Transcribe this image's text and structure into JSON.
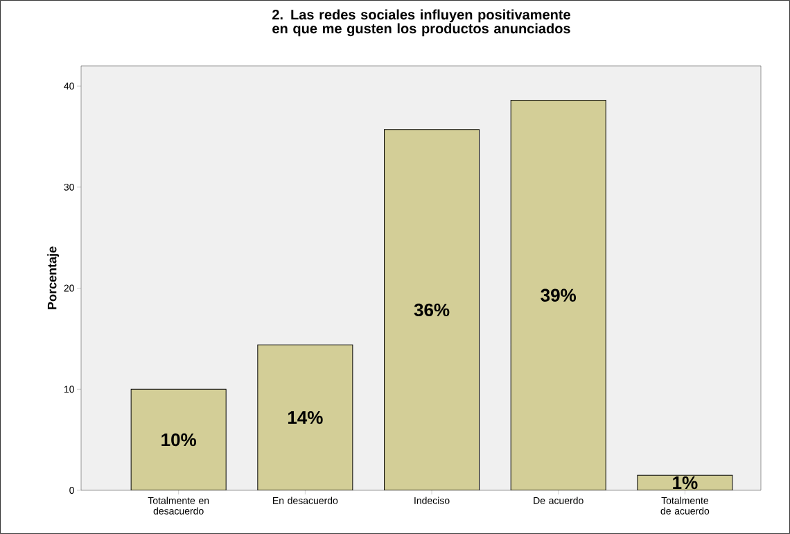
{
  "chart_data": {
    "type": "bar",
    "title": "2. Las redes sociales influyen positivamente en que me gusten los productos anunciados",
    "ylabel": "Porcentaje",
    "categories": [
      "Totalmente en desacuerdo",
      "En desacuerdo",
      "Indeciso",
      "De acuerdo",
      "Totalmente de acuerdo"
    ],
    "values": [
      10,
      14.4,
      35.7,
      38.6,
      1.5
    ],
    "value_labels": [
      "10%",
      "14%",
      "36%",
      "39%",
      "1%"
    ],
    "color": "#d3ce97",
    "ylim": [
      0,
      42
    ],
    "yticks": [
      0,
      10,
      20,
      30,
      40
    ],
    "grid": false,
    "legend": false
  }
}
